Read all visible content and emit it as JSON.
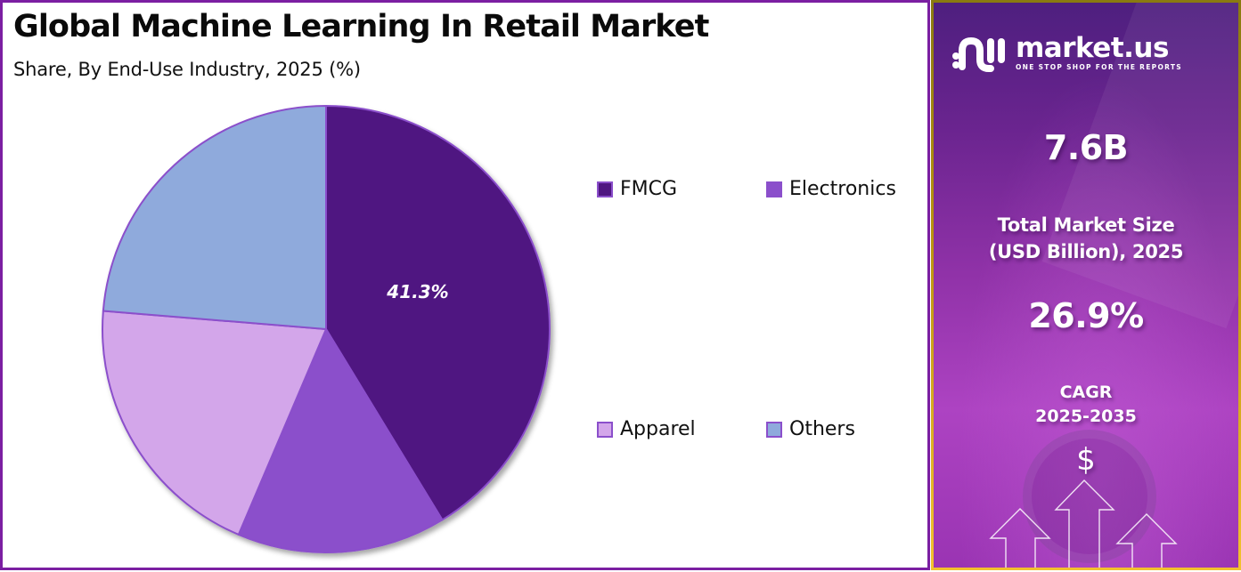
{
  "header": {
    "title": "Global Machine Learning In Retail Market",
    "subtitle": "Share, By End-Use Industry, 2025 (%)"
  },
  "legend": [
    {
      "label": "FMCG",
      "color": "#4F1681"
    },
    {
      "label": "Electronics",
      "color": "#8B4FCB"
    },
    {
      "label": "Apparel",
      "color": "#D3A6EA"
    },
    {
      "label": "Others",
      "color": "#8FAADC"
    }
  ],
  "chart_data": {
    "type": "pie",
    "title": "Global Machine Learning In Retail Market",
    "subtitle": "Share, By End-Use Industry, 2025 (%)",
    "categories": [
      "FMCG",
      "Electronics",
      "Apparel",
      "Others"
    ],
    "values": [
      41.3,
      15.1,
      19.9,
      23.7
    ],
    "colors": [
      "#4F1681",
      "#8B4FCB",
      "#D3A6EA",
      "#8FAADC"
    ],
    "data_labels": [
      {
        "category": "FMCG",
        "text": "41.3%"
      }
    ],
    "start_angle": "12 o'clock",
    "direction": "clockwise",
    "legend_position": "right"
  },
  "sidebar": {
    "brand_name": "market.us",
    "brand_tagline": "ONE STOP SHOP FOR THE REPORTS",
    "market_size_value": "7.6B",
    "market_size_label_line1": "Total Market Size",
    "market_size_label_line2": "(USD Billion), 2025",
    "cagr_value": "26.9%",
    "cagr_label_line1": "CAGR",
    "cagr_label_line2": "2025-2035",
    "dollar_symbol": "$"
  },
  "colors": {
    "left_border": "#7B1FA2",
    "slice_stroke": "#8B4FCB",
    "right_panel_border": "#F2C12E"
  }
}
